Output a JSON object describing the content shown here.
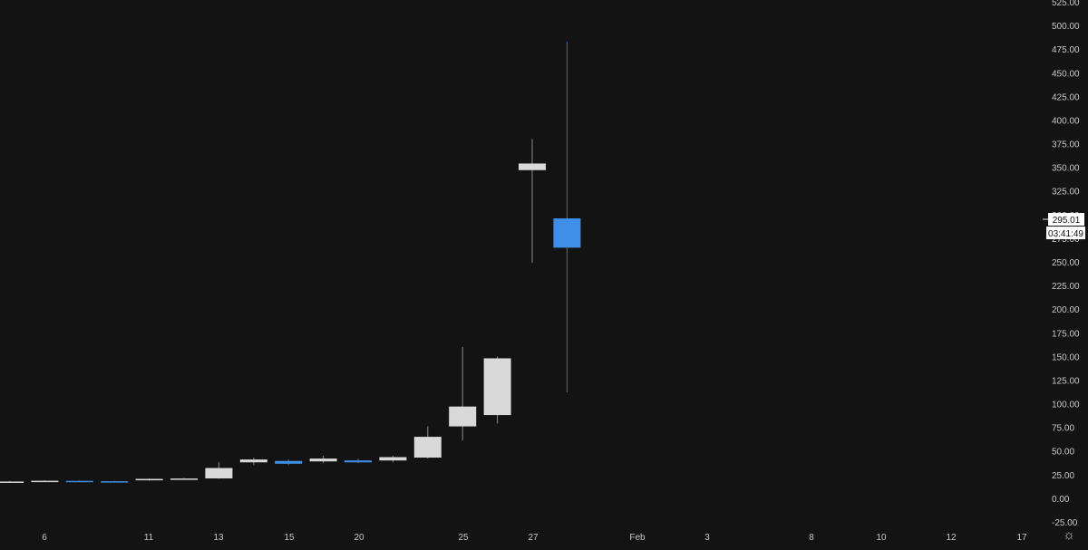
{
  "chart_data": {
    "type": "candlestick",
    "ylim": [
      -25,
      525
    ],
    "y_ticks": [
      "-25.00",
      "0.00",
      "25.00",
      "50.00",
      "75.00",
      "100.00",
      "125.00",
      "150.00",
      "175.00",
      "200.00",
      "225.00",
      "250.00",
      "275.00",
      "300.00",
      "325.00",
      "350.00",
      "375.00",
      "400.00",
      "425.00",
      "450.00",
      "475.00",
      "500.00",
      "525.00"
    ],
    "x_tick_labels": [
      "6",
      "11",
      "13",
      "15",
      "20",
      "25",
      "27",
      "Feb",
      "3",
      "8",
      "10",
      "12",
      "17"
    ],
    "colors": {
      "up": "#d9d9d9",
      "down": "#3f8fe8",
      "background": "#131313",
      "axis_text": "#c8c8c8"
    },
    "candles": [
      {
        "o": 17.5,
        "h": 18.2,
        "l": 17.0,
        "c": 17.7
      },
      {
        "o": 18.0,
        "h": 19.0,
        "l": 17.2,
        "c": 18.5
      },
      {
        "o": 18.4,
        "h": 18.9,
        "l": 17.6,
        "c": 17.9
      },
      {
        "o": 18.0,
        "h": 18.6,
        "l": 17.3,
        "c": 17.6
      },
      {
        "o": 19.0,
        "h": 21.0,
        "l": 18.5,
        "c": 20.5
      },
      {
        "o": 20.5,
        "h": 21.4,
        "l": 19.8,
        "c": 20.9
      },
      {
        "o": 21.0,
        "h": 38.0,
        "l": 20.5,
        "c": 32.0
      },
      {
        "o": 38.0,
        "h": 43.0,
        "l": 35.0,
        "c": 41.0
      },
      {
        "o": 39.5,
        "h": 41.0,
        "l": 35.0,
        "c": 36.5
      },
      {
        "o": 39.0,
        "h": 45.0,
        "l": 37.0,
        "c": 42.0
      },
      {
        "o": 40.0,
        "h": 42.0,
        "l": 37.0,
        "c": 38.0
      },
      {
        "o": 40.0,
        "h": 45.0,
        "l": 38.0,
        "c": 43.5
      },
      {
        "o": 43.0,
        "h": 76.0,
        "l": 42.0,
        "c": 65.0
      },
      {
        "o": 76.0,
        "h": 160.0,
        "l": 61.0,
        "c": 97.0
      },
      {
        "o": 88.0,
        "h": 150.0,
        "l": 79.0,
        "c": 148.0
      },
      {
        "o": 347.0,
        "h": 380.0,
        "l": 249.0,
        "c": 354.0
      },
      {
        "o": 296.0,
        "h": 483.0,
        "l": 112.0,
        "c": 265.0
      }
    ],
    "last_price": {
      "label": "295.01",
      "value": 295.01
    },
    "countdown": "03:41:49"
  }
}
